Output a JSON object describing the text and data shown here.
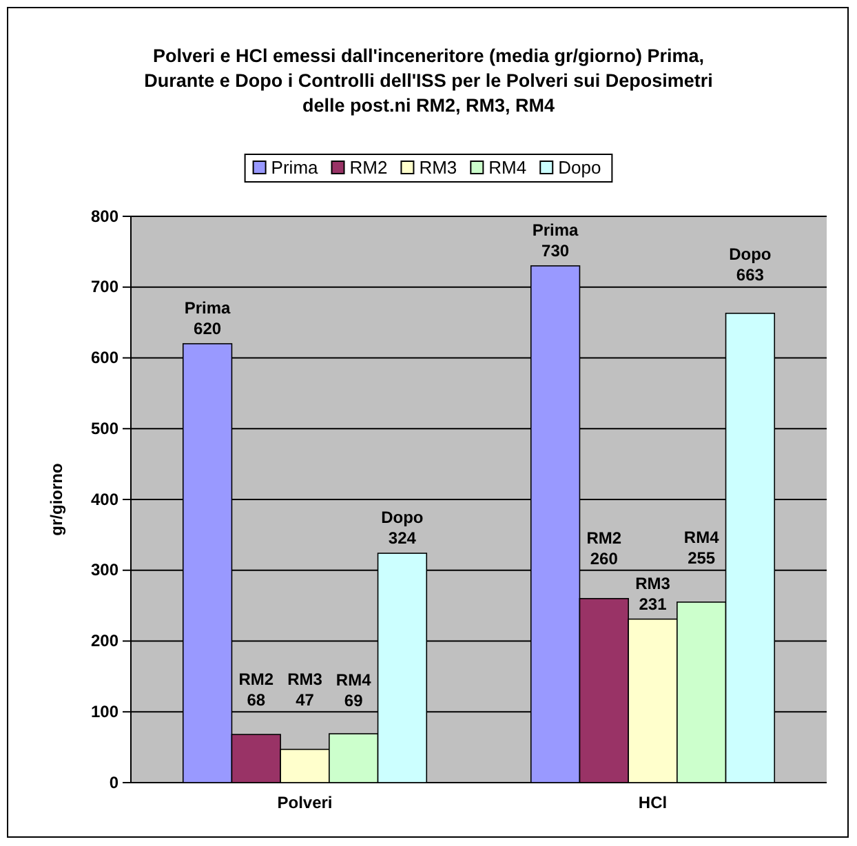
{
  "chart_data": {
    "type": "bar",
    "title": "Polveri e HCl emessi dall'inceneritore (media gr/giorno) Prima, Durante e Dopo i Controlli dell'ISS per le Polveri sui Deposimetri delle post.ni RM2, RM3, RM4",
    "ylabel": "gr/giorno",
    "categories": [
      "Polveri",
      "HCl"
    ],
    "series": [
      {
        "name": "Prima",
        "color": "#9999ff",
        "values": [
          620,
          730
        ]
      },
      {
        "name": "RM2",
        "color": "#993366",
        "values": [
          68,
          260
        ]
      },
      {
        "name": "RM3",
        "color": "#ffffcc",
        "values": [
          47,
          231
        ]
      },
      {
        "name": "RM4",
        "color": "#ccffcc",
        "values": [
          69,
          255
        ]
      },
      {
        "name": "Dopo",
        "color": "#ccffff",
        "values": [
          324,
          663
        ]
      }
    ],
    "ylim": [
      0,
      800
    ],
    "yticks": [
      0,
      100,
      200,
      300,
      400,
      500,
      600,
      700,
      800
    ],
    "grid": "y",
    "legend": "top",
    "data_labels": true
  }
}
